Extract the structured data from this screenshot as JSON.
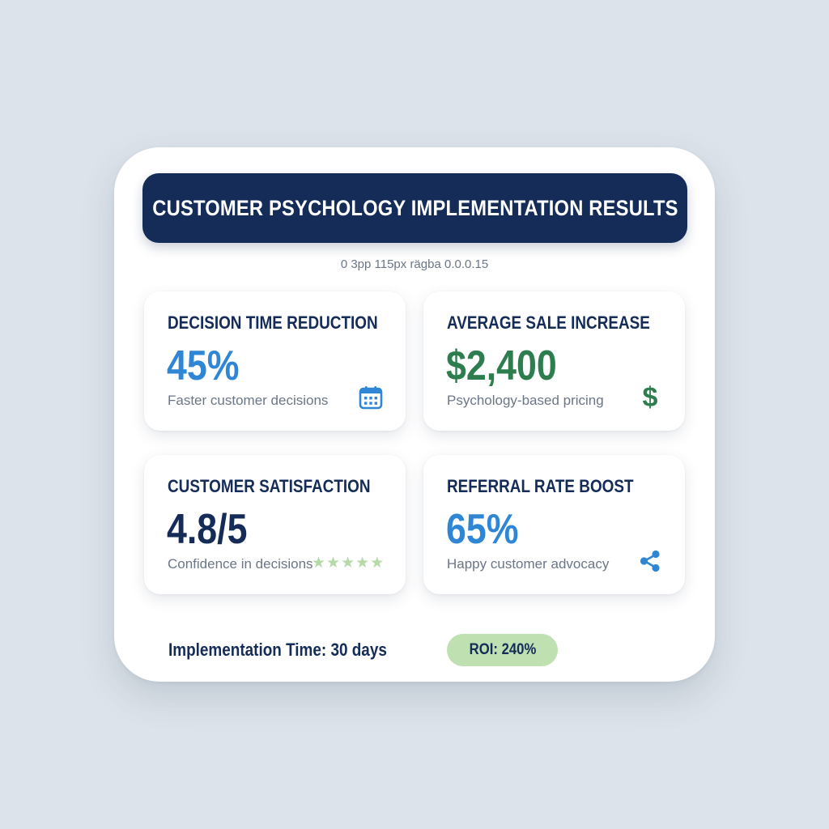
{
  "header": {
    "title": "CUSTOMER PSYCHOLOGY IMPLEMENTATION RESULTS"
  },
  "caption": "0 3pp 115px rägba 0.0.0.15",
  "cards": [
    {
      "label": "DECISION TIME REDUCTION",
      "value": "45%",
      "description": "Faster customer decisions",
      "icon": "calendar-icon",
      "value_color": "#2f86d4",
      "icon_color": "#2f86d4"
    },
    {
      "label": "AVERAGE SALE INCREASE",
      "value": "$2,400",
      "description": "Psychology-based pricing",
      "icon": "dollar-icon",
      "icon_glyph": "$",
      "value_color": "#2e7d4f",
      "icon_color": "#2e7d4f"
    },
    {
      "label": "CUSTOMER SATISFACTION",
      "value": "4.8/5",
      "description": "Confidence in decisions",
      "icon": "star-rating-icon",
      "rating": 4.8,
      "rating_max": 5,
      "value_color": "#142c57",
      "icon_color": "#b7d8a8"
    },
    {
      "label": "REFERRAL RATE BOOST",
      "value": "65%",
      "description": "Happy customer advocacy",
      "icon": "share-icon",
      "value_color": "#2f86d4",
      "icon_color": "#2f86d4"
    }
  ],
  "footer": {
    "implementation_time": "Implementation Time: 30 days",
    "roi": "ROI: 240%",
    "roi_color": "#bfe0b0"
  },
  "colors": {
    "background": "#dde3ea",
    "panel": "#ffffff",
    "header": "#142c57",
    "label": "#142c57",
    "muted_text": "#6b7686"
  }
}
